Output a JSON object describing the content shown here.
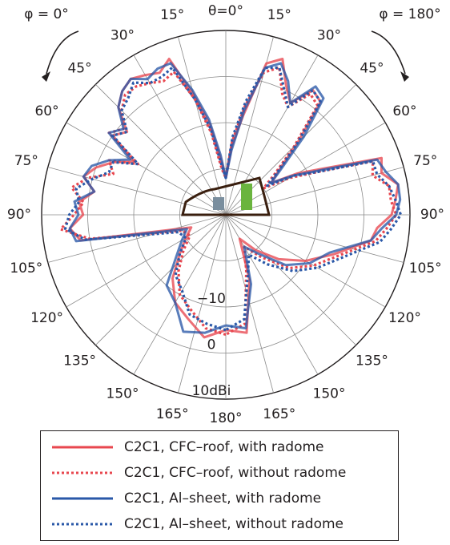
{
  "chart_data": {
    "type": "polar",
    "title": "",
    "angle_unit": "deg",
    "radial_unit": "dBi",
    "radial_ticks": [
      "−10",
      "0",
      "10dBi"
    ],
    "rlim": [
      -30,
      10
    ],
    "grid": true,
    "angle_labels": {
      "top": "θ=0°",
      "left": [
        "15°",
        "30°",
        "45°",
        "60°",
        "75°",
        "90°",
        "105°",
        "120°",
        "135°",
        "150°",
        "165°"
      ],
      "right": [
        "15°",
        "30°",
        "45°",
        "60°",
        "75°",
        "90°",
        "105°",
        "120°",
        "135°",
        "150°",
        "165°"
      ],
      "bottom": "180°"
    },
    "phi_left": "φ = 0°",
    "phi_right": "φ = 180°",
    "series": [
      {
        "name": "C2C1, CFC–roof, with radome",
        "color": "#e8474f",
        "dash": "solid",
        "theta": [
          -180,
          -170,
          -160,
          -150,
          -140,
          -130,
          -120,
          -110,
          -100,
          -95,
          -90,
          -85,
          -80,
          -75,
          -70,
          -65,
          -60,
          -55,
          -50,
          -45,
          -40,
          -35,
          -30,
          -25,
          -20,
          -15,
          -10,
          -5,
          0,
          5,
          10,
          15,
          20,
          25,
          30,
          35,
          40,
          45,
          50,
          55,
          60,
          65,
          70,
          75,
          80,
          85,
          90,
          95,
          100,
          110,
          120,
          130,
          140,
          150,
          160,
          170,
          180
        ],
        "gain": [
          -5,
          -3,
          -6,
          -8,
          -12,
          -17,
          -20,
          -22,
          2,
          4,
          1,
          2,
          -1,
          2,
          0,
          -3,
          -7,
          0,
          -2,
          3,
          5,
          6,
          5,
          4,
          6,
          -3,
          -10,
          -18,
          -22,
          -15,
          -8,
          4,
          6,
          1,
          -2,
          3,
          2,
          -8,
          -15,
          -18,
          -12,
          -6,
          6,
          5,
          8,
          7,
          6,
          3,
          2,
          -5,
          -10,
          -15,
          -20,
          -24,
          -15,
          -4,
          -5
        ]
      },
      {
        "name": "C2C1, CFC–roof, without radome",
        "color": "#e8474f",
        "dash": "dot",
        "theta": [
          -180,
          -170,
          -160,
          -150,
          -140,
          -130,
          -120,
          -110,
          -100,
          -95,
          -90,
          -85,
          -80,
          -75,
          -70,
          -65,
          -60,
          -55,
          -50,
          -45,
          -40,
          -35,
          -30,
          -25,
          -20,
          -15,
          -10,
          -5,
          0,
          5,
          10,
          15,
          20,
          25,
          30,
          35,
          40,
          45,
          50,
          55,
          60,
          65,
          70,
          75,
          80,
          85,
          90,
          95,
          100,
          110,
          120,
          130,
          140,
          150,
          160,
          170,
          180
        ],
        "gain": [
          -4,
          -5,
          -8,
          -10,
          -14,
          -18,
          -21,
          -20,
          0,
          6,
          3,
          1,
          4,
          1,
          -4,
          -2,
          -8,
          1,
          -1,
          2,
          4,
          4,
          3,
          2,
          3,
          -4,
          -12,
          -20,
          -22,
          -14,
          -6,
          2,
          4,
          -1,
          -3,
          2,
          1,
          -9,
          -16,
          -20,
          -14,
          -8,
          4,
          3,
          6,
          6,
          7,
          5,
          3,
          -4,
          -8,
          -12,
          -18,
          -22,
          -17,
          -6,
          -4
        ]
      },
      {
        "name": "C2C1, Al–sheet, with radome",
        "color": "#2a58a8",
        "dash": "solid",
        "theta": [
          -180,
          -170,
          -160,
          -150,
          -140,
          -130,
          -120,
          -110,
          -100,
          -95,
          -90,
          -85,
          -80,
          -75,
          -70,
          -65,
          -60,
          -55,
          -50,
          -45,
          -40,
          -35,
          -30,
          -25,
          -20,
          -15,
          -10,
          -5,
          0,
          5,
          10,
          15,
          20,
          25,
          30,
          35,
          40,
          45,
          50,
          55,
          60,
          65,
          70,
          75,
          80,
          85,
          90,
          95,
          100,
          110,
          120,
          130,
          140,
          150,
          160,
          170,
          180
        ],
        "gain": [
          -6,
          -4,
          -3,
          -8,
          -10,
          -16,
          -19,
          -21,
          3,
          4,
          2,
          3,
          -1,
          2,
          1,
          -2,
          -6,
          1,
          -1,
          3,
          5,
          6,
          4,
          5,
          5,
          -2,
          -9,
          -17,
          -22,
          -16,
          -7,
          3,
          5,
          2,
          -2,
          4,
          3,
          -6,
          -14,
          -18,
          -13,
          -7,
          5,
          6,
          8,
          8,
          7,
          4,
          2,
          -6,
          -9,
          -13,
          -19,
          -22,
          -14,
          -5,
          -6
        ]
      },
      {
        "name": "C2C1, Al–sheet, without radome",
        "color": "#2a58a8",
        "dash": "dot",
        "theta": [
          -180,
          -170,
          -160,
          -150,
          -140,
          -130,
          -120,
          -110,
          -100,
          -95,
          -90,
          -85,
          -80,
          -75,
          -70,
          -65,
          -60,
          -55,
          -50,
          -45,
          -40,
          -35,
          -30,
          -25,
          -20,
          -15,
          -10,
          -5,
          0,
          5,
          10,
          15,
          20,
          25,
          30,
          35,
          40,
          45,
          50,
          55,
          60,
          65,
          70,
          75,
          80,
          85,
          90,
          95,
          100,
          110,
          120,
          130,
          140,
          150,
          160,
          170,
          180
        ],
        "gain": [
          -5,
          -6,
          -7,
          -11,
          -13,
          -17,
          -20,
          -19,
          1,
          5,
          4,
          2,
          3,
          0,
          -3,
          -3,
          -8,
          0,
          -2,
          2,
          3,
          5,
          3,
          3,
          4,
          -4,
          -11,
          -19,
          -22,
          -13,
          -5,
          3,
          4,
          0,
          -3,
          3,
          2,
          -8,
          -15,
          -19,
          -13,
          -8,
          4,
          4,
          6,
          7,
          8,
          6,
          4,
          -3,
          -7,
          -11,
          -16,
          -20,
          -16,
          -7,
          -5
        ]
      }
    ]
  },
  "legend": {
    "items": [
      {
        "label": "C2C1, CFC–roof, with radome",
        "color": "#e8474f",
        "dash": "solid"
      },
      {
        "label": "C2C1, CFC–roof, without radome",
        "color": "#e8474f",
        "dash": "dot"
      },
      {
        "label": "C2C1, Al–sheet, with radome",
        "color": "#2a58a8",
        "dash": "solid"
      },
      {
        "label": "C2C1, Al–sheet, without radome",
        "color": "#2a58a8",
        "dash": "dot"
      }
    ]
  }
}
